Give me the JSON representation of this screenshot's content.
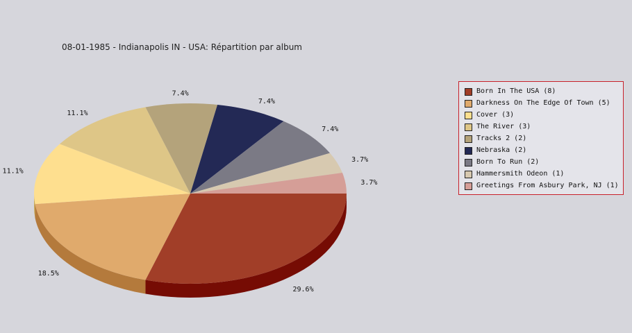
{
  "chart_data": {
    "type": "pie",
    "title": "08-01-1985 - Indianapolis IN - USA:  Répartition par album",
    "slices": [
      {
        "label": "Born In The USA (8)",
        "value": 8,
        "percent_label": "29.6%",
        "color": "#a13e28",
        "side_color": "#760c04"
      },
      {
        "label": "Darkness On The Edge Of Town (5)",
        "value": 5,
        "percent_label": "18.5%",
        "color": "#e0aa6c",
        "side_color": "#b47a3c"
      },
      {
        "label": "Cover (3)",
        "value": 3,
        "percent_label": "11.1%",
        "color": "#fedf8f",
        "side_color": "#c8a858"
      },
      {
        "label": "The River (3)",
        "value": 3,
        "percent_label": "11.1%",
        "color": "#dec687",
        "side_color": "#a8905a"
      },
      {
        "label": "Tracks 2 (2)",
        "value": 2,
        "percent_label": "7.4%",
        "color": "#b4a37b",
        "side_color": "#857550"
      },
      {
        "label": "Nebraska (2)",
        "value": 2,
        "percent_label": "7.4%",
        "color": "#232955",
        "side_color": "#10143a"
      },
      {
        "label": "Born To Run (2)",
        "value": 2,
        "percent_label": "7.4%",
        "color": "#7b7a85",
        "side_color": "#54535c"
      },
      {
        "label": "Hammersmith Odeon  (1)",
        "value": 1,
        "percent_label": "3.7%",
        "color": "#d7c9b0",
        "side_color": "#a99c84"
      },
      {
        "label": "Greetings From Asbury Park, NJ (1)",
        "value": 1,
        "percent_label": "3.7%",
        "color": "#d59e97",
        "side_color": "#a8706a"
      }
    ],
    "legend_position": "right"
  }
}
